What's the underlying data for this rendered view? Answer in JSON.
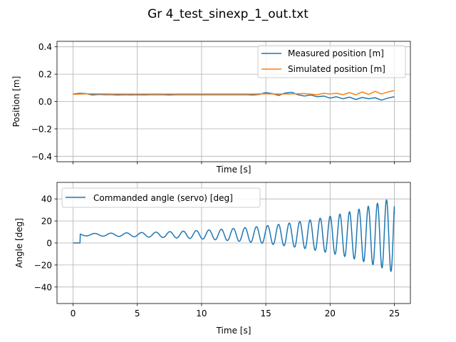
{
  "figure": {
    "title": "Gr 4_test_sinexp_1_out.txt"
  },
  "colors": {
    "measured": "#1f77b4",
    "simulated": "#ff7f0e",
    "commanded": "#1f77b4",
    "grid": "#b0b0b0"
  },
  "chart_data": [
    {
      "type": "line",
      "xlabel": "Time [s]",
      "ylabel": "Position [m]",
      "xlim": [
        -1.25,
        26.25
      ],
      "ylim": [
        -0.44,
        0.44
      ],
      "xticks": [
        0,
        5,
        10,
        15,
        20,
        25
      ],
      "show_xticklabels": false,
      "yticks": [
        -0.4,
        -0.2,
        0.0,
        0.2,
        0.4
      ],
      "ytick_labels": [
        "−0.4",
        "−0.2",
        "0.0",
        "0.2",
        "0.4"
      ],
      "grid": true,
      "legend_position": "top-right",
      "series": [
        {
          "name": "Measured position [m]",
          "color": "#1f77b4",
          "x": [
            0,
            0.5,
            1,
            1.5,
            2,
            2.5,
            3,
            3.5,
            4,
            4.5,
            5,
            5.5,
            6,
            6.5,
            7,
            7.5,
            8,
            8.5,
            9,
            9.5,
            10,
            10.5,
            11,
            11.5,
            12,
            12.5,
            13,
            13.5,
            14,
            14.5,
            15,
            15.5,
            16,
            16.5,
            17,
            17.5,
            18,
            18.5,
            19,
            19.5,
            20,
            20.5,
            21,
            21.5,
            22,
            22.5,
            23,
            23.5,
            24,
            24.5,
            25
          ],
          "y": [
            0.055,
            0.06,
            0.058,
            0.048,
            0.052,
            0.05,
            0.05,
            0.048,
            0.05,
            0.049,
            0.05,
            0.049,
            0.05,
            0.05,
            0.05,
            0.048,
            0.05,
            0.05,
            0.05,
            0.05,
            0.05,
            0.05,
            0.05,
            0.05,
            0.05,
            0.05,
            0.05,
            0.05,
            0.048,
            0.052,
            0.065,
            0.058,
            0.045,
            0.062,
            0.068,
            0.05,
            0.04,
            0.048,
            0.035,
            0.04,
            0.025,
            0.035,
            0.02,
            0.032,
            0.015,
            0.03,
            0.02,
            0.028,
            0.01,
            0.025,
            0.035
          ]
        },
        {
          "name": "Simulated position [m]",
          "color": "#ff7f0e",
          "x": [
            0,
            1,
            2,
            3,
            4,
            5,
            6,
            7,
            8,
            9,
            10,
            11,
            12,
            13,
            14,
            15,
            16,
            17,
            18,
            19,
            19.5,
            20,
            20.5,
            21,
            21.5,
            22,
            22.5,
            23,
            23.5,
            24,
            24.5,
            25
          ],
          "y": [
            0.053,
            0.056,
            0.056,
            0.055,
            0.055,
            0.055,
            0.055,
            0.055,
            0.055,
            0.055,
            0.055,
            0.055,
            0.055,
            0.055,
            0.055,
            0.056,
            0.055,
            0.056,
            0.058,
            0.05,
            0.06,
            0.055,
            0.06,
            0.05,
            0.065,
            0.05,
            0.07,
            0.052,
            0.075,
            0.055,
            0.07,
            0.08
          ]
        }
      ]
    },
    {
      "type": "line",
      "xlabel": "Time [s]",
      "ylabel": "Angle [deg]",
      "xlim": [
        -1.25,
        26.25
      ],
      "ylim": [
        -55,
        55
      ],
      "xticks": [
        0,
        5,
        10,
        15,
        20,
        25
      ],
      "yticks": [
        -40,
        -20,
        0,
        20,
        40
      ],
      "ytick_labels": [
        "−40",
        "−20",
        "0",
        "20",
        "40"
      ],
      "grid": true,
      "legend_position": "top-left",
      "series": [
        {
          "name": "Commanded angle (servo) [deg]",
          "color": "#1f77b4",
          "waveform": {
            "t_start": 0,
            "t_end": 25,
            "step_time": 0.55,
            "offset": 7.5,
            "base_amplitude": 1.0,
            "amplitude_growth": 0.145,
            "freq_start_hz": 0.72,
            "freq_end_hz": 1.45,
            "final_value": 26
          }
        }
      ]
    }
  ]
}
